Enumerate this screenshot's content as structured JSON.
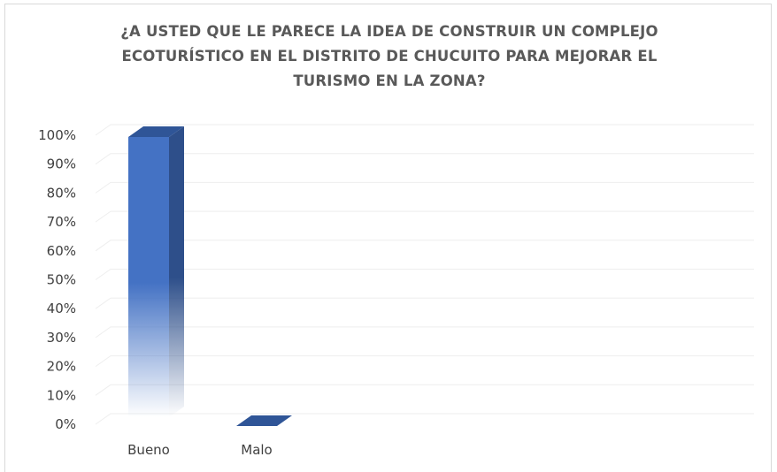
{
  "chart_data": {
    "type": "bar",
    "title": "¿A USTED QUE LE PARECE LA IDEA DE CONSTRUIR UN COMPLEJO ECOTURÍSTICO EN EL DISTRITO DE CHUCUITO PARA MEJORAR EL TURISMO EN LA ZONA?",
    "categories": [
      "Bueno",
      "Malo"
    ],
    "values": [
      100,
      0
    ],
    "ylim": [
      0,
      100
    ],
    "yticks": [
      "0%",
      "10%",
      "20%",
      "30%",
      "40%",
      "50%",
      "60%",
      "70%",
      "80%",
      "90%",
      "100%"
    ],
    "grid": true,
    "bar_style": "3d-column-gradient",
    "colors": {
      "bar_front": "#4472c4",
      "bar_side": "#2e4f8a",
      "bar_top": "#2f5597",
      "gridline": "#eeeeee"
    }
  }
}
